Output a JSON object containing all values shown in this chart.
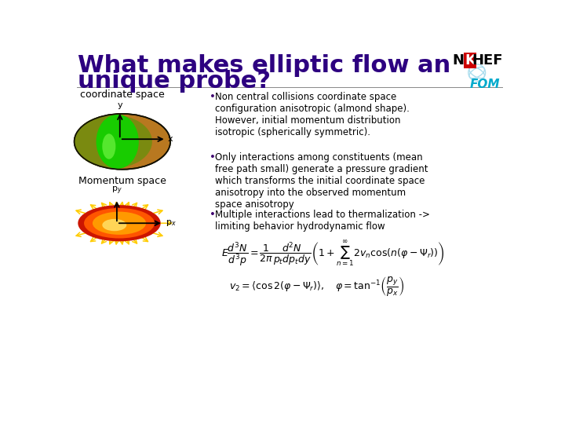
{
  "title_line1": "What makes elliptic flow an",
  "title_line2": "unique probe?",
  "title_color": "#2d0080",
  "title_fontsize": 22,
  "bg_color": "#ffffff",
  "coord_label": "coordinate space",
  "momentum_label": "Momentum space",
  "bullet1": "Non central collisions coordinate space\nconfiguration anisotropic (almond shape).\nHowever, initial momentum distribution\nisotropic (spherically symmetric).",
  "bullet2": "Only interactions among constituents (mean\nfree path small) generate a pressure gradient\nwhich transforms the initial coordinate space\nanisotropy into the observed momentum\nspace anisotropy",
  "bullet3": "Multiple interactions lead to thermalization ->\nlimiting behavior hydrodynamic flow",
  "bullet_color": "#3d006e",
  "text_color": "#000000",
  "label_fontsize": 9,
  "body_fontsize": 8.5,
  "formula_fontsize": 9
}
